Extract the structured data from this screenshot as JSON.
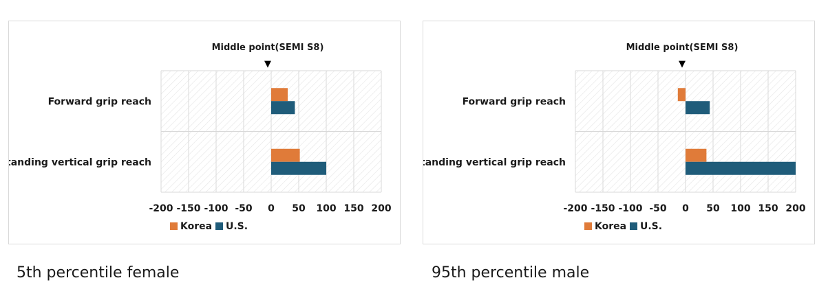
{
  "chart_data": [
    {
      "type": "bar",
      "orientation": "horizontal",
      "categories": [
        "Forward grip reach",
        "Standing vertical grip reach"
      ],
      "series": [
        {
          "name": "Korea",
          "color": "#E07B39",
          "values": [
            30,
            52
          ]
        },
        {
          "name": "U.S.",
          "color": "#1F5C7A",
          "values": [
            43,
            100
          ]
        }
      ],
      "xlim": [
        -200,
        200
      ],
      "xticks": [
        "-200",
        "-150",
        "-100",
        "-50",
        "0",
        "50",
        "100",
        "150",
        "200"
      ],
      "annotation": {
        "text": "Middle point(SEMI S8)",
        "marker": "▼",
        "x": 0
      },
      "grid": true,
      "legend": "bottom-left",
      "caption": "5th percentile female"
    },
    {
      "type": "bar",
      "orientation": "horizontal",
      "categories": [
        "Forward grip reach",
        "Standing vertical grip reach"
      ],
      "series": [
        {
          "name": "Korea",
          "color": "#E07B39",
          "values": [
            -14,
            38
          ]
        },
        {
          "name": "U.S.",
          "color": "#1F5C7A",
          "values": [
            44,
            200
          ]
        }
      ],
      "xlim": [
        -200,
        200
      ],
      "xticks": [
        "-200",
        "-150",
        "-100",
        "-50",
        "0",
        "50",
        "100",
        "150",
        "200"
      ],
      "annotation": {
        "text": "Middle point(SEMI S8)",
        "marker": "▼",
        "x": 0
      },
      "grid": true,
      "legend": "bottom-left",
      "caption": "95th percentile male"
    }
  ]
}
